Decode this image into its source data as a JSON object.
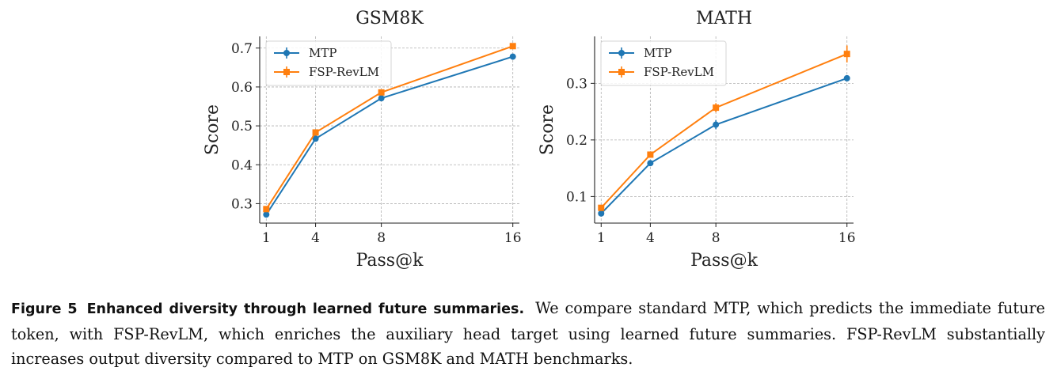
{
  "chart_data": [
    {
      "type": "line",
      "title": "GSM8K",
      "xlabel": "Pass@k",
      "ylabel": "Score",
      "x": [
        1,
        4,
        8,
        16
      ],
      "xticks": [
        "1",
        "4",
        "8",
        "16"
      ],
      "yticks": [
        "0.3",
        "0.4",
        "0.5",
        "0.6",
        "0.7"
      ],
      "ylim": [
        0.25,
        0.73
      ],
      "xlim": [
        0.6,
        16.4
      ],
      "grid": true,
      "legend": "top-left",
      "series": [
        {
          "name": "MTP",
          "color": "#1f77b4",
          "marker": "circle",
          "values": [
            0.272,
            0.467,
            0.571,
            0.678
          ],
          "err": [
            0,
            0,
            0,
            0
          ]
        },
        {
          "name": "FSP-RevLM",
          "color": "#ff7f0e",
          "marker": "square",
          "values": [
            0.286,
            0.483,
            0.586,
            0.705
          ],
          "err": [
            0,
            0,
            0,
            0
          ]
        }
      ]
    },
    {
      "type": "line",
      "title": "MATH",
      "xlabel": "Pass@k",
      "ylabel": "Score",
      "x": [
        1,
        4,
        8,
        16
      ],
      "xticks": [
        "1",
        "4",
        "8",
        "16"
      ],
      "yticks": [
        "0.1",
        "0.2",
        "0.3"
      ],
      "ylim": [
        0.053,
        0.383
      ],
      "xlim": [
        0.6,
        16.4
      ],
      "grid": true,
      "legend": "top-left",
      "series": [
        {
          "name": "MTP",
          "color": "#1f77b4",
          "marker": "circle",
          "values": [
            0.07,
            0.159,
            0.227,
            0.309
          ],
          "err": [
            0,
            0,
            0.008,
            0
          ]
        },
        {
          "name": "FSP-RevLM",
          "color": "#ff7f0e",
          "marker": "square",
          "values": [
            0.08,
            0.174,
            0.257,
            0.352
          ],
          "err": [
            0,
            0,
            0.008,
            0.015
          ]
        }
      ]
    }
  ],
  "caption": {
    "label": "Figure 5",
    "title": "Enhanced diversity through learned future summaries.",
    "text": "We compare standard MTP, which predicts the immediate future token, with FSP-RevLM, which enriches the auxiliary head target using learned future summaries. FSP-RevLM substantially increases output diversity compared to MTP on GSM8K and MATH benchmarks."
  }
}
